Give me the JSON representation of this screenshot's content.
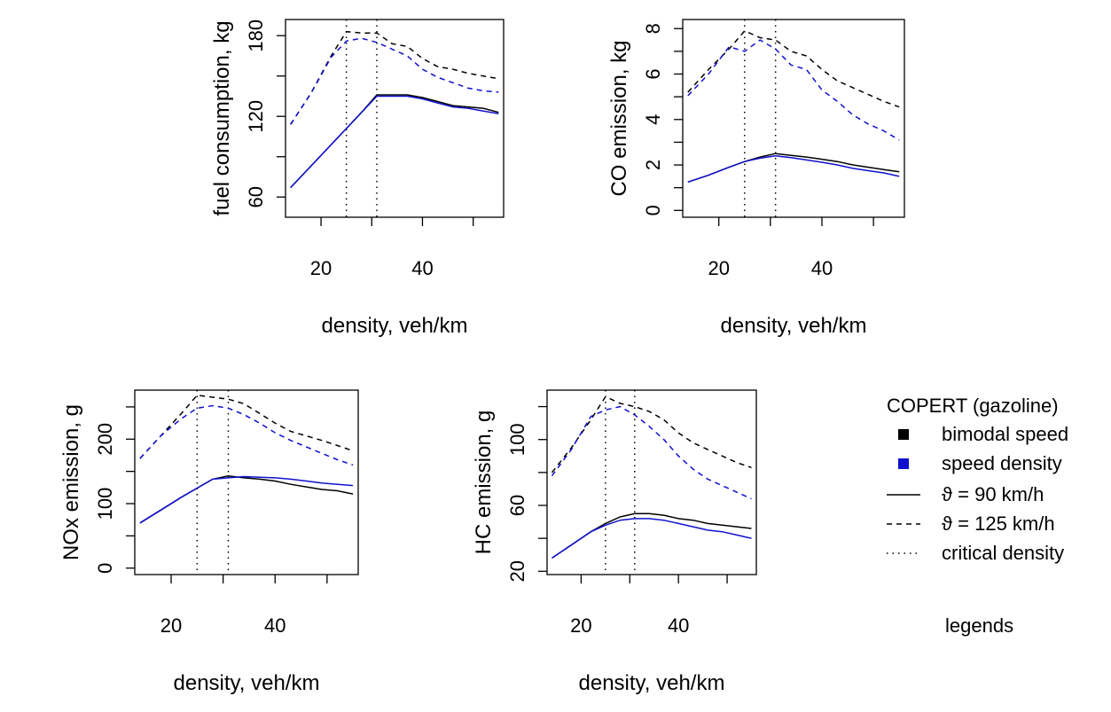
{
  "colors": {
    "bimodal": "#000000",
    "speed_density": "#1010d0"
  },
  "chart_data": [
    {
      "type": "line",
      "xlabel": "density, veh/km",
      "ylabel": "fuel consumption, kg",
      "xticks": [
        20,
        40
      ],
      "yticks": [
        60,
        120,
        180
      ],
      "xlim": [
        13,
        56
      ],
      "ylim": [
        45,
        192
      ],
      "critical_density": [
        25,
        31
      ],
      "x": [
        14,
        18,
        22,
        25,
        28,
        31,
        34,
        37,
        40,
        43,
        46,
        49,
        52,
        55
      ],
      "series": [
        {
          "name": "bimodal speed",
          "speed_limit": "ϑ = 90 km/h",
          "values": [
            67,
            83,
            99,
            111,
            123,
            136,
            136,
            136,
            134,
            131,
            128,
            127,
            126,
            123
          ]
        },
        {
          "name": "speed density",
          "speed_limit": "ϑ = 90 km/h",
          "values": [
            67,
            83,
            99,
            111,
            123,
            135,
            135,
            135,
            133,
            130,
            127,
            126,
            124,
            122
          ]
        },
        {
          "name": "bimodal speed",
          "speed_limit": "ϑ = 125 km/h",
          "values": [
            114,
            137,
            165,
            183,
            182,
            182,
            174,
            172,
            163,
            157,
            155,
            152,
            150,
            148
          ]
        },
        {
          "name": "speed density",
          "speed_limit": "ϑ = 125 km/h",
          "values": [
            114,
            137,
            164,
            176,
            178,
            175,
            170,
            165,
            155,
            149,
            145,
            141,
            139,
            138
          ]
        }
      ]
    },
    {
      "type": "line",
      "xlabel": "density, veh/km",
      "ylabel": "CO emission, kg",
      "xticks": [
        20,
        40
      ],
      "yticks": [
        0,
        2,
        4,
        6,
        8
      ],
      "xlim": [
        13,
        56
      ],
      "ylim": [
        -0.3,
        8.4
      ],
      "critical_density": [
        25,
        31
      ],
      "x": [
        14,
        18,
        22,
        25,
        28,
        31,
        34,
        37,
        40,
        43,
        46,
        49,
        52,
        55
      ],
      "series": [
        {
          "name": "bimodal speed",
          "speed_limit": "ϑ = 90 km/h",
          "values": [
            1.25,
            1.55,
            1.9,
            2.15,
            2.35,
            2.5,
            2.42,
            2.35,
            2.25,
            2.15,
            2.0,
            1.9,
            1.8,
            1.7
          ]
        },
        {
          "name": "speed density",
          "speed_limit": "ϑ = 90 km/h",
          "values": [
            1.25,
            1.55,
            1.9,
            2.15,
            2.3,
            2.4,
            2.32,
            2.22,
            2.12,
            2.0,
            1.85,
            1.75,
            1.65,
            1.5
          ]
        },
        {
          "name": "bimodal speed",
          "speed_limit": "ϑ = 125 km/h",
          "values": [
            5.2,
            6.2,
            7.1,
            7.9,
            7.6,
            7.5,
            7.0,
            6.8,
            6.2,
            5.7,
            5.4,
            5.1,
            4.8,
            4.55
          ]
        },
        {
          "name": "speed density",
          "speed_limit": "ϑ = 125 km/h",
          "values": [
            5.05,
            6.0,
            7.2,
            7.0,
            7.5,
            7.1,
            6.4,
            6.2,
            5.3,
            4.8,
            4.2,
            3.8,
            3.5,
            3.1
          ]
        }
      ]
    },
    {
      "type": "line",
      "xlabel": "density, veh/km",
      "ylabel": "NOx emission, g",
      "xticks": [
        20,
        40
      ],
      "yticks": [
        0,
        100,
        200
      ],
      "xlim": [
        13,
        56
      ],
      "ylim": [
        -10,
        276
      ],
      "critical_density": [
        25,
        31
      ],
      "x": [
        14,
        18,
        22,
        25,
        28,
        31,
        34,
        37,
        40,
        43,
        46,
        49,
        52,
        55
      ],
      "series": [
        {
          "name": "bimodal speed",
          "speed_limit": "ϑ = 90 km/h",
          "values": [
            70,
            90,
            110,
            124,
            138,
            143,
            140,
            138,
            135,
            130,
            126,
            122,
            120,
            115
          ]
        },
        {
          "name": "speed density",
          "speed_limit": "ϑ = 90 km/h",
          "values": [
            70,
            90,
            110,
            124,
            138,
            140,
            142,
            141,
            140,
            138,
            135,
            132,
            130,
            128
          ]
        },
        {
          "name": "bimodal speed",
          "speed_limit": "ϑ = 125 km/h",
          "values": [
            170,
            205,
            240,
            268,
            265,
            262,
            255,
            240,
            225,
            212,
            205,
            198,
            190,
            182
          ]
        },
        {
          "name": "speed density",
          "speed_limit": "ϑ = 125 km/h",
          "values": [
            170,
            205,
            232,
            248,
            252,
            248,
            238,
            225,
            210,
            198,
            188,
            178,
            168,
            160
          ]
        }
      ]
    },
    {
      "type": "line",
      "xlabel": "density, veh/km",
      "ylabel": "HC emission, g",
      "xticks": [
        20,
        40
      ],
      "yticks": [
        20,
        60,
        100
      ],
      "xlim": [
        13,
        56
      ],
      "ylim": [
        18,
        130
      ],
      "critical_density": [
        25,
        31
      ],
      "x": [
        14,
        18,
        22,
        25,
        28,
        31,
        34,
        37,
        40,
        43,
        46,
        49,
        52,
        55
      ],
      "series": [
        {
          "name": "bimodal speed",
          "speed_limit": "ϑ = 90 km/h",
          "values": [
            28,
            36,
            44,
            49,
            53,
            55,
            55,
            54,
            52,
            51,
            49,
            48,
            47,
            46
          ]
        },
        {
          "name": "speed density",
          "speed_limit": "ϑ = 90 km/h",
          "values": [
            28,
            36,
            44,
            48,
            51,
            52,
            52,
            51,
            49,
            47,
            45,
            44,
            42,
            40
          ]
        },
        {
          "name": "bimodal speed",
          "speed_limit": "ϑ = 125 km/h",
          "values": [
            80,
            95,
            112,
            126,
            122,
            120,
            117,
            112,
            104,
            98,
            94,
            90,
            86,
            83
          ]
        },
        {
          "name": "speed density",
          "speed_limit": "ϑ = 125 km/h",
          "values": [
            78,
            94,
            114,
            118,
            120,
            115,
            108,
            100,
            90,
            82,
            76,
            72,
            68,
            64
          ]
        }
      ]
    }
  ],
  "legend": {
    "title": "COPERT (gazoline)",
    "entries": [
      {
        "label": "bimodal speed",
        "kind": "square",
        "color": "#000000"
      },
      {
        "label": "speed density",
        "kind": "square",
        "color": "#1010d0"
      },
      {
        "label": "ϑ = 90 km/h",
        "kind": "solid"
      },
      {
        "label": "ϑ = 125 km/h",
        "kind": "dashed"
      },
      {
        "label": "critical density",
        "kind": "dotted"
      }
    ],
    "caption": "legends"
  }
}
